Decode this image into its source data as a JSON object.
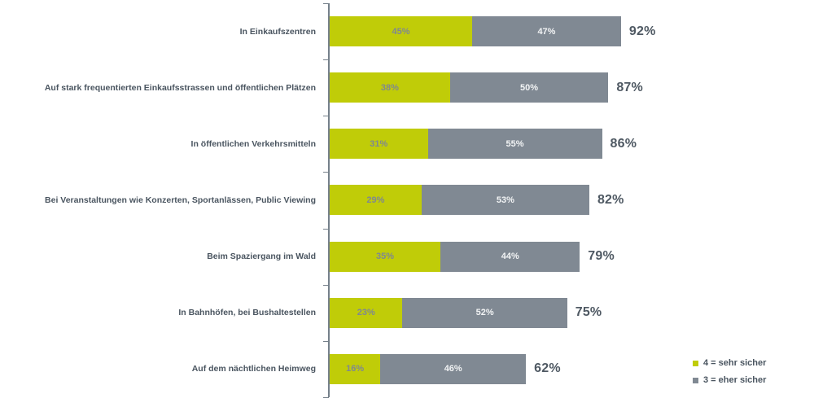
{
  "chart_data": {
    "type": "bar",
    "orientation": "horizontal",
    "stacked": true,
    "title": "",
    "xlabel": "",
    "ylabel": "",
    "xlim": [
      0,
      100
    ],
    "grid": false,
    "legend_position": "bottom-right",
    "categories": [
      "In Einkaufszentren",
      "Auf stark frequentierten Einkaufsstrassen und öffentlichen Plätzen",
      "In öffentlichen Verkehrsmitteln",
      "Bei Veranstaltungen wie Konzerten, Sportanlässen, Public Viewing",
      "Beim Spaziergang im Wald",
      "In Bahnhöfen, bei Bushaltestellen",
      "Auf dem nächtlichen Heimweg"
    ],
    "series": [
      {
        "name": "4 = sehr sicher",
        "color": "#c0cc08",
        "values": [
          45,
          38,
          31,
          29,
          35,
          23,
          16
        ],
        "labels": [
          "45%",
          "38%",
          "31%",
          "29%",
          "35%",
          "23%",
          "16%"
        ]
      },
      {
        "name": "3 = eher sicher",
        "color": "#808993",
        "values": [
          47,
          50,
          55,
          53,
          44,
          52,
          46
        ],
        "labels": [
          "47%",
          "50%",
          "55%",
          "53%",
          "44%",
          "52%",
          "46%"
        ]
      }
    ],
    "totals": [
      92,
      87,
      86,
      82,
      79,
      75,
      62
    ],
    "total_labels": [
      "92%",
      "87%",
      "86%",
      "82%",
      "79%",
      "75%",
      "62%"
    ]
  },
  "colors": {
    "sehr_sicher": "#c0cc08",
    "eher_sicher": "#808993",
    "axis": "#75808a",
    "category_label": "#4a5560",
    "total_label": "#4f5963",
    "value_on_green": "#7f8891",
    "value_on_gray": "#f2f4f5",
    "background": "#ffffff"
  },
  "legend": {
    "items": [
      {
        "label": "4 = sehr sicher",
        "color": "#c0cc08"
      },
      {
        "label": "3 = eher sicher",
        "color": "#808993"
      }
    ]
  }
}
